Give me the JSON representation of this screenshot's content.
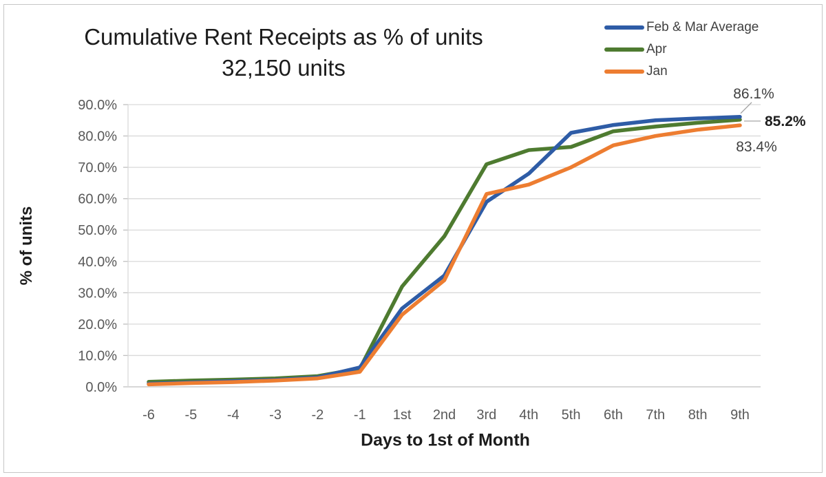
{
  "title": {
    "line1": "Cumulative Rent Receipts as % of units",
    "line2": "32,150 units"
  },
  "chart_data": {
    "type": "line",
    "title": "Cumulative Rent Receipts as % of units — 32,150 units",
    "xlabel": "Days to 1st of Month",
    "ylabel": "% of units",
    "categories": [
      "-6",
      "-5",
      "-4",
      "-3",
      "-2",
      "-1",
      "1st",
      "2nd",
      "3rd",
      "4th",
      "5th",
      "6th",
      "7th",
      "8th",
      "9th"
    ],
    "series": [
      {
        "name": "Feb & Mar Average",
        "color": "#2e5ca6",
        "values": [
          1.0,
          1.4,
          1.8,
          2.2,
          3.0,
          6.2,
          25.0,
          35.5,
          59.0,
          68.0,
          81.0,
          83.5,
          85.0,
          85.6,
          86.1
        ],
        "end_label": "86.1%",
        "end_label_bold": false,
        "z": 2
      },
      {
        "name": "Apr",
        "color": "#4e7b30",
        "values": [
          1.6,
          2.0,
          2.3,
          2.7,
          3.4,
          5.8,
          32.0,
          48.0,
          71.0,
          75.5,
          76.5,
          81.5,
          83.0,
          84.2,
          85.2
        ],
        "end_label": "85.2%",
        "end_label_bold": true,
        "z": 1
      },
      {
        "name": "Jan",
        "color": "#ed7d31",
        "values": [
          0.8,
          1.2,
          1.5,
          2.0,
          2.7,
          4.8,
          23.0,
          34.0,
          61.5,
          64.5,
          70.0,
          77.0,
          80.0,
          82.0,
          83.4
        ],
        "end_label": "83.4%",
        "end_label_bold": false,
        "z": 3
      }
    ],
    "ylim": [
      0,
      90
    ],
    "ytick_step": 10,
    "ytick_labels": [
      "0.0%",
      "10.0%",
      "20.0%",
      "30.0%",
      "40.0%",
      "50.0%",
      "60.0%",
      "70.0%",
      "80.0%",
      "90.0%"
    ],
    "grid": true,
    "legend_position": "top-right",
    "colors": {
      "gridline": "#d9d9d9",
      "axis_line": "#bfbfbf",
      "tick_text": "#595959",
      "leader_line": "#a6a6a6"
    }
  }
}
